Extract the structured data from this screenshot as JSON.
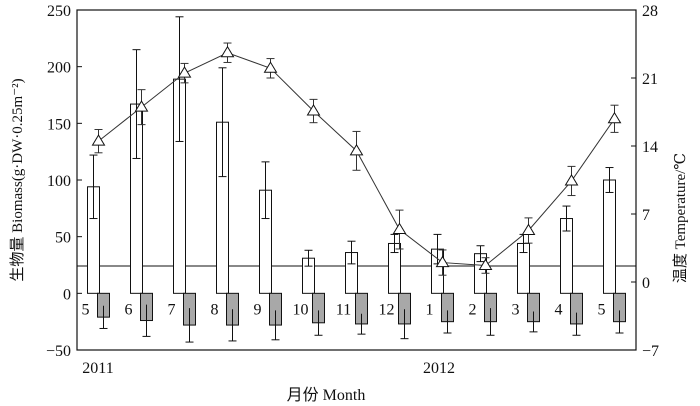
{
  "chart_data": {
    "type": "bar",
    "title": "",
    "xlabel": "月份 Month",
    "ylabel_left": "生物量 Biomass(g·DW·0.25m⁻²)",
    "ylabel_right": "温度 Temperature/℃",
    "ylim_left": [
      -50,
      250
    ],
    "yticks_left": [
      "250",
      "200",
      "150",
      "100",
      "50",
      "0",
      "−50"
    ],
    "ylim_right": [
      -7,
      28
    ],
    "yticks_right": [
      "28",
      "21",
      "14",
      "7",
      "0",
      "−7"
    ],
    "categories": [
      "5",
      "6",
      "7",
      "8",
      "9",
      "10",
      "11",
      "12",
      "1",
      "2",
      "3",
      "4",
      "5"
    ],
    "year_labels": [
      "2011",
      "2012"
    ],
    "series": [
      {
        "kind": "bar-above",
        "color": "#ffffff",
        "values": [
          94,
          167,
          189,
          151,
          91,
          31,
          36,
          44,
          39,
          35,
          44,
          66,
          100
        ],
        "errors": [
          28,
          48,
          55,
          48,
          25,
          7,
          10,
          8,
          13,
          7,
          8,
          11,
          11
        ]
      },
      {
        "kind": "bar-below",
        "color": "#a8a8a8",
        "values": [
          -21,
          -24,
          -28,
          -28,
          -28,
          -26,
          -27,
          -27,
          -25,
          -25,
          -25,
          -27,
          -25
        ],
        "errors": [
          10,
          14,
          15,
          14,
          13,
          11,
          9,
          13,
          10,
          12,
          9,
          10,
          10
        ]
      },
      {
        "kind": "line",
        "axis": "right",
        "marker": "triangle",
        "values": [
          14.5,
          18.0,
          21.5,
          23.6,
          22.0,
          17.6,
          13.5,
          5.4,
          2.0,
          1.7,
          5.3,
          10.4,
          16.8
        ],
        "errors": [
          1.2,
          1.8,
          1.0,
          1.0,
          1.0,
          1.2,
          2.0,
          2.0,
          1.3,
          0.8,
          1.3,
          1.5,
          1.4
        ]
      }
    ]
  }
}
